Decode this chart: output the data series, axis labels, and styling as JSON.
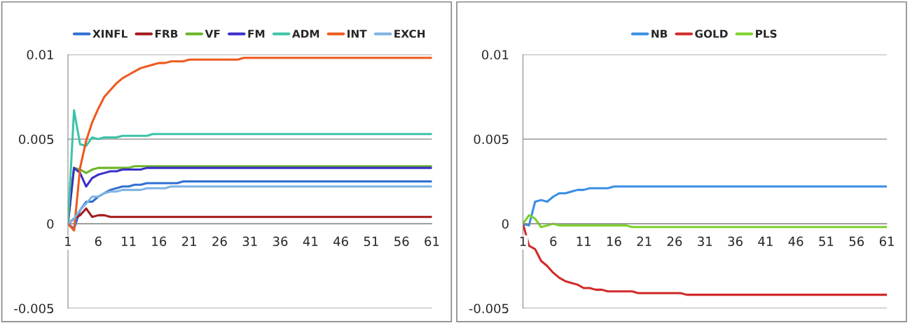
{
  "chart_data": [
    {
      "type": "line",
      "categories": [
        "1",
        null,
        null,
        null,
        null,
        "6",
        null,
        null,
        null,
        null,
        "11",
        null,
        null,
        null,
        null,
        "16",
        null,
        null,
        null,
        null,
        "21",
        null,
        null,
        null,
        null,
        "26",
        null,
        null,
        null,
        null,
        "31",
        null,
        null,
        null,
        null,
        "36",
        null,
        null,
        null,
        null,
        "41",
        null,
        null,
        null,
        null,
        "46",
        null,
        null,
        null,
        null,
        "51",
        null,
        null,
        null,
        null,
        "56",
        null,
        null,
        null,
        null,
        "61"
      ],
      "ylim": [
        -0.005,
        0.01
      ],
      "yticks": [
        -0.005,
        0,
        0.005,
        0.01
      ],
      "grid": "y",
      "legend": "top",
      "series": [
        {
          "name": "XINFL",
          "color": "#2f6fd0",
          "values": [
            0,
            -0.0003,
            0.0008,
            0.0013,
            0.0013,
            0.0016,
            0.0018,
            0.002,
            0.0021,
            0.0022,
            0.0022,
            0.0023,
            0.0023,
            0.0024,
            0.0024,
            0.0024,
            0.0024,
            0.0024,
            0.0024,
            0.0025,
            0.0025,
            0.0025,
            0.0025,
            0.0025,
            0.0025,
            0.0025,
            0.0025,
            0.0025,
            0.0025,
            0.0025,
            0.0025,
            0.0025,
            0.0025,
            0.0025,
            0.0025,
            0.0025,
            0.0025,
            0.0025,
            0.0025,
            0.0025,
            0.0025,
            0.0025,
            0.0025,
            0.0025,
            0.0025,
            0.0025,
            0.0025,
            0.0025,
            0.0025,
            0.0025,
            0.0025,
            0.0025,
            0.0025,
            0.0025,
            0.0025,
            0.0025,
            0.0025,
            0.0025,
            0.0025,
            0.0025,
            0.0025
          ]
        },
        {
          "name": "FRB",
          "color": "#a31a1a",
          "values": [
            0,
            0.0003,
            0.0005,
            0.0009,
            0.0004,
            0.0005,
            0.0005,
            0.0004,
            0.0004,
            0.0004,
            0.0004,
            0.0004,
            0.0004,
            0.0004,
            0.0004,
            0.0004,
            0.0004,
            0.0004,
            0.0004,
            0.0004,
            0.0004,
            0.0004,
            0.0004,
            0.0004,
            0.0004,
            0.0004,
            0.0004,
            0.0004,
            0.0004,
            0.0004,
            0.0004,
            0.0004,
            0.0004,
            0.0004,
            0.0004,
            0.0004,
            0.0004,
            0.0004,
            0.0004,
            0.0004,
            0.0004,
            0.0004,
            0.0004,
            0.0004,
            0.0004,
            0.0004,
            0.0004,
            0.0004,
            0.0004,
            0.0004,
            0.0004,
            0.0004,
            0.0004,
            0.0004,
            0.0004,
            0.0004,
            0.0004,
            0.0004,
            0.0004,
            0.0004,
            0.0004
          ]
        },
        {
          "name": "VF",
          "color": "#6cb52a",
          "values": [
            0,
            0.0033,
            0.0032,
            0.003,
            0.0032,
            0.0033,
            0.0033,
            0.0033,
            0.0033,
            0.0033,
            0.0033,
            0.0034,
            0.0034,
            0.0034,
            0.0034,
            0.0034,
            0.0034,
            0.0034,
            0.0034,
            0.0034,
            0.0034,
            0.0034,
            0.0034,
            0.0034,
            0.0034,
            0.0034,
            0.0034,
            0.0034,
            0.0034,
            0.0034,
            0.0034,
            0.0034,
            0.0034,
            0.0034,
            0.0034,
            0.0034,
            0.0034,
            0.0034,
            0.0034,
            0.0034,
            0.0034,
            0.0034,
            0.0034,
            0.0034,
            0.0034,
            0.0034,
            0.0034,
            0.0034,
            0.0034,
            0.0034,
            0.0034,
            0.0034,
            0.0034,
            0.0034,
            0.0034,
            0.0034,
            0.0034,
            0.0034,
            0.0034,
            0.0034,
            0.0034
          ]
        },
        {
          "name": "FM",
          "color": "#3a2fc9",
          "values": [
            0,
            0.0033,
            0.003,
            0.0022,
            0.0027,
            0.0029,
            0.003,
            0.0031,
            0.0031,
            0.0032,
            0.0032,
            0.0032,
            0.0032,
            0.0033,
            0.0033,
            0.0033,
            0.0033,
            0.0033,
            0.0033,
            0.0033,
            0.0033,
            0.0033,
            0.0033,
            0.0033,
            0.0033,
            0.0033,
            0.0033,
            0.0033,
            0.0033,
            0.0033,
            0.0033,
            0.0033,
            0.0033,
            0.0033,
            0.0033,
            0.0033,
            0.0033,
            0.0033,
            0.0033,
            0.0033,
            0.0033,
            0.0033,
            0.0033,
            0.0033,
            0.0033,
            0.0033,
            0.0033,
            0.0033,
            0.0033,
            0.0033,
            0.0033,
            0.0033,
            0.0033,
            0.0033,
            0.0033,
            0.0033,
            0.0033,
            0.0033,
            0.0033,
            0.0033,
            0.0033
          ]
        },
        {
          "name": "ADM",
          "color": "#3dc4a8",
          "values": [
            0,
            0.0067,
            0.0047,
            0.0046,
            0.0051,
            0.005,
            0.0051,
            0.0051,
            0.0051,
            0.0052,
            0.0052,
            0.0052,
            0.0052,
            0.0052,
            0.0053,
            0.0053,
            0.0053,
            0.0053,
            0.0053,
            0.0053,
            0.0053,
            0.0053,
            0.0053,
            0.0053,
            0.0053,
            0.0053,
            0.0053,
            0.0053,
            0.0053,
            0.0053,
            0.0053,
            0.0053,
            0.0053,
            0.0053,
            0.0053,
            0.0053,
            0.0053,
            0.0053,
            0.0053,
            0.0053,
            0.0053,
            0.0053,
            0.0053,
            0.0053,
            0.0053,
            0.0053,
            0.0053,
            0.0053,
            0.0053,
            0.0053,
            0.0053,
            0.0053,
            0.0053,
            0.0053,
            0.0053,
            0.0053,
            0.0053,
            0.0053,
            0.0053,
            0.0053,
            0.0053
          ]
        },
        {
          "name": "INT",
          "color": "#ee5a1e",
          "values": [
            0,
            -0.0004,
            0.0033,
            0.0049,
            0.006,
            0.0068,
            0.0075,
            0.0079,
            0.0083,
            0.0086,
            0.0088,
            0.009,
            0.0092,
            0.0093,
            0.0094,
            0.0095,
            0.0095,
            0.0096,
            0.0096,
            0.0096,
            0.0097,
            0.0097,
            0.0097,
            0.0097,
            0.0097,
            0.0097,
            0.0097,
            0.0097,
            0.0097,
            0.0098,
            0.0098,
            0.0098,
            0.0098,
            0.0098,
            0.0098,
            0.0098,
            0.0098,
            0.0098,
            0.0098,
            0.0098,
            0.0098,
            0.0098,
            0.0098,
            0.0098,
            0.0098,
            0.0098,
            0.0098,
            0.0098,
            0.0098,
            0.0098,
            0.0098,
            0.0098,
            0.0098,
            0.0098,
            0.0098,
            0.0098,
            0.0098,
            0.0098,
            0.0098,
            0.0098,
            0.0098
          ]
        },
        {
          "name": "EXCH",
          "color": "#7db3e3",
          "values": [
            0,
            0.0003,
            0.0008,
            0.0012,
            0.0016,
            0.0016,
            0.0018,
            0.0019,
            0.0019,
            0.002,
            0.002,
            0.002,
            0.002,
            0.0021,
            0.0021,
            0.0021,
            0.0021,
            0.0022,
            0.0022,
            0.0022,
            0.0022,
            0.0022,
            0.0022,
            0.0022,
            0.0022,
            0.0022,
            0.0022,
            0.0022,
            0.0022,
            0.0022,
            0.0022,
            0.0022,
            0.0022,
            0.0022,
            0.0022,
            0.0022,
            0.0022,
            0.0022,
            0.0022,
            0.0022,
            0.0022,
            0.0022,
            0.0022,
            0.0022,
            0.0022,
            0.0022,
            0.0022,
            0.0022,
            0.0022,
            0.0022,
            0.0022,
            0.0022,
            0.0022,
            0.0022,
            0.0022,
            0.0022,
            0.0022,
            0.0022,
            0.0022,
            0.0022,
            0.0022
          ]
        }
      ]
    },
    {
      "type": "line",
      "categories": [
        "1",
        null,
        null,
        null,
        null,
        "6",
        null,
        null,
        null,
        null,
        "11",
        null,
        null,
        null,
        null,
        "16",
        null,
        null,
        null,
        null,
        "21",
        null,
        null,
        null,
        null,
        "26",
        null,
        null,
        null,
        null,
        "31",
        null,
        null,
        null,
        null,
        "36",
        null,
        null,
        null,
        null,
        "41",
        null,
        null,
        null,
        null,
        "46",
        null,
        null,
        null,
        null,
        "51",
        null,
        null,
        null,
        null,
        "56",
        null,
        null,
        null,
        null,
        "61"
      ],
      "ylim": [
        -0.005,
        0.01
      ],
      "yticks": [
        -0.005,
        0,
        0.005,
        0.01
      ],
      "grid": "y",
      "legend": "top",
      "series": [
        {
          "name": "NB",
          "color": "#3a8ee6",
          "values": [
            0,
            -0.0001,
            0.0013,
            0.0014,
            0.0013,
            0.0016,
            0.0018,
            0.0018,
            0.0019,
            0.002,
            0.002,
            0.0021,
            0.0021,
            0.0021,
            0.0021,
            0.0022,
            0.0022,
            0.0022,
            0.0022,
            0.0022,
            0.0022,
            0.0022,
            0.0022,
            0.0022,
            0.0022,
            0.0022,
            0.0022,
            0.0022,
            0.0022,
            0.0022,
            0.0022,
            0.0022,
            0.0022,
            0.0022,
            0.0022,
            0.0022,
            0.0022,
            0.0022,
            0.0022,
            0.0022,
            0.0022,
            0.0022,
            0.0022,
            0.0022,
            0.0022,
            0.0022,
            0.0022,
            0.0022,
            0.0022,
            0.0022,
            0.0022,
            0.0022,
            0.0022,
            0.0022,
            0.0022,
            0.0022,
            0.0022,
            0.0022,
            0.0022,
            0.0022,
            0.0022
          ]
        },
        {
          "name": "GOLD",
          "color": "#d02a2a",
          "values": [
            0,
            -0.0013,
            -0.0015,
            -0.0022,
            -0.0025,
            -0.0029,
            -0.0032,
            -0.0034,
            -0.0035,
            -0.0036,
            -0.0038,
            -0.0038,
            -0.0039,
            -0.0039,
            -0.004,
            -0.004,
            -0.004,
            -0.004,
            -0.004,
            -0.0041,
            -0.0041,
            -0.0041,
            -0.0041,
            -0.0041,
            -0.0041,
            -0.0041,
            -0.0041,
            -0.0042,
            -0.0042,
            -0.0042,
            -0.0042,
            -0.0042,
            -0.0042,
            -0.0042,
            -0.0042,
            -0.0042,
            -0.0042,
            -0.0042,
            -0.0042,
            -0.0042,
            -0.0042,
            -0.0042,
            -0.0042,
            -0.0042,
            -0.0042,
            -0.0042,
            -0.0042,
            -0.0042,
            -0.0042,
            -0.0042,
            -0.0042,
            -0.0042,
            -0.0042,
            -0.0042,
            -0.0042,
            -0.0042,
            -0.0042,
            -0.0042,
            -0.0042,
            -0.0042,
            -0.0042
          ]
        },
        {
          "name": "PLS",
          "color": "#7dd12c",
          "values": [
            0,
            0.0005,
            0.0003,
            -0.0002,
            -0.0001,
            0,
            -0.0001,
            -0.0001,
            -0.0001,
            -0.0001,
            -0.0001,
            -0.0001,
            -0.0001,
            -0.0001,
            -0.0001,
            -0.0001,
            -0.0001,
            -0.0001,
            -0.0002,
            -0.0002,
            -0.0002,
            -0.0002,
            -0.0002,
            -0.0002,
            -0.0002,
            -0.0002,
            -0.0002,
            -0.0002,
            -0.0002,
            -0.0002,
            -0.0002,
            -0.0002,
            -0.0002,
            -0.0002,
            -0.0002,
            -0.0002,
            -0.0002,
            -0.0002,
            -0.0002,
            -0.0002,
            -0.0002,
            -0.0002,
            -0.0002,
            -0.0002,
            -0.0002,
            -0.0002,
            -0.0002,
            -0.0002,
            -0.0002,
            -0.0002,
            -0.0002,
            -0.0002,
            -0.0002,
            -0.0002,
            -0.0002,
            -0.0002,
            -0.0002,
            -0.0002,
            -0.0002,
            -0.0002,
            -0.0002
          ]
        }
      ]
    }
  ]
}
